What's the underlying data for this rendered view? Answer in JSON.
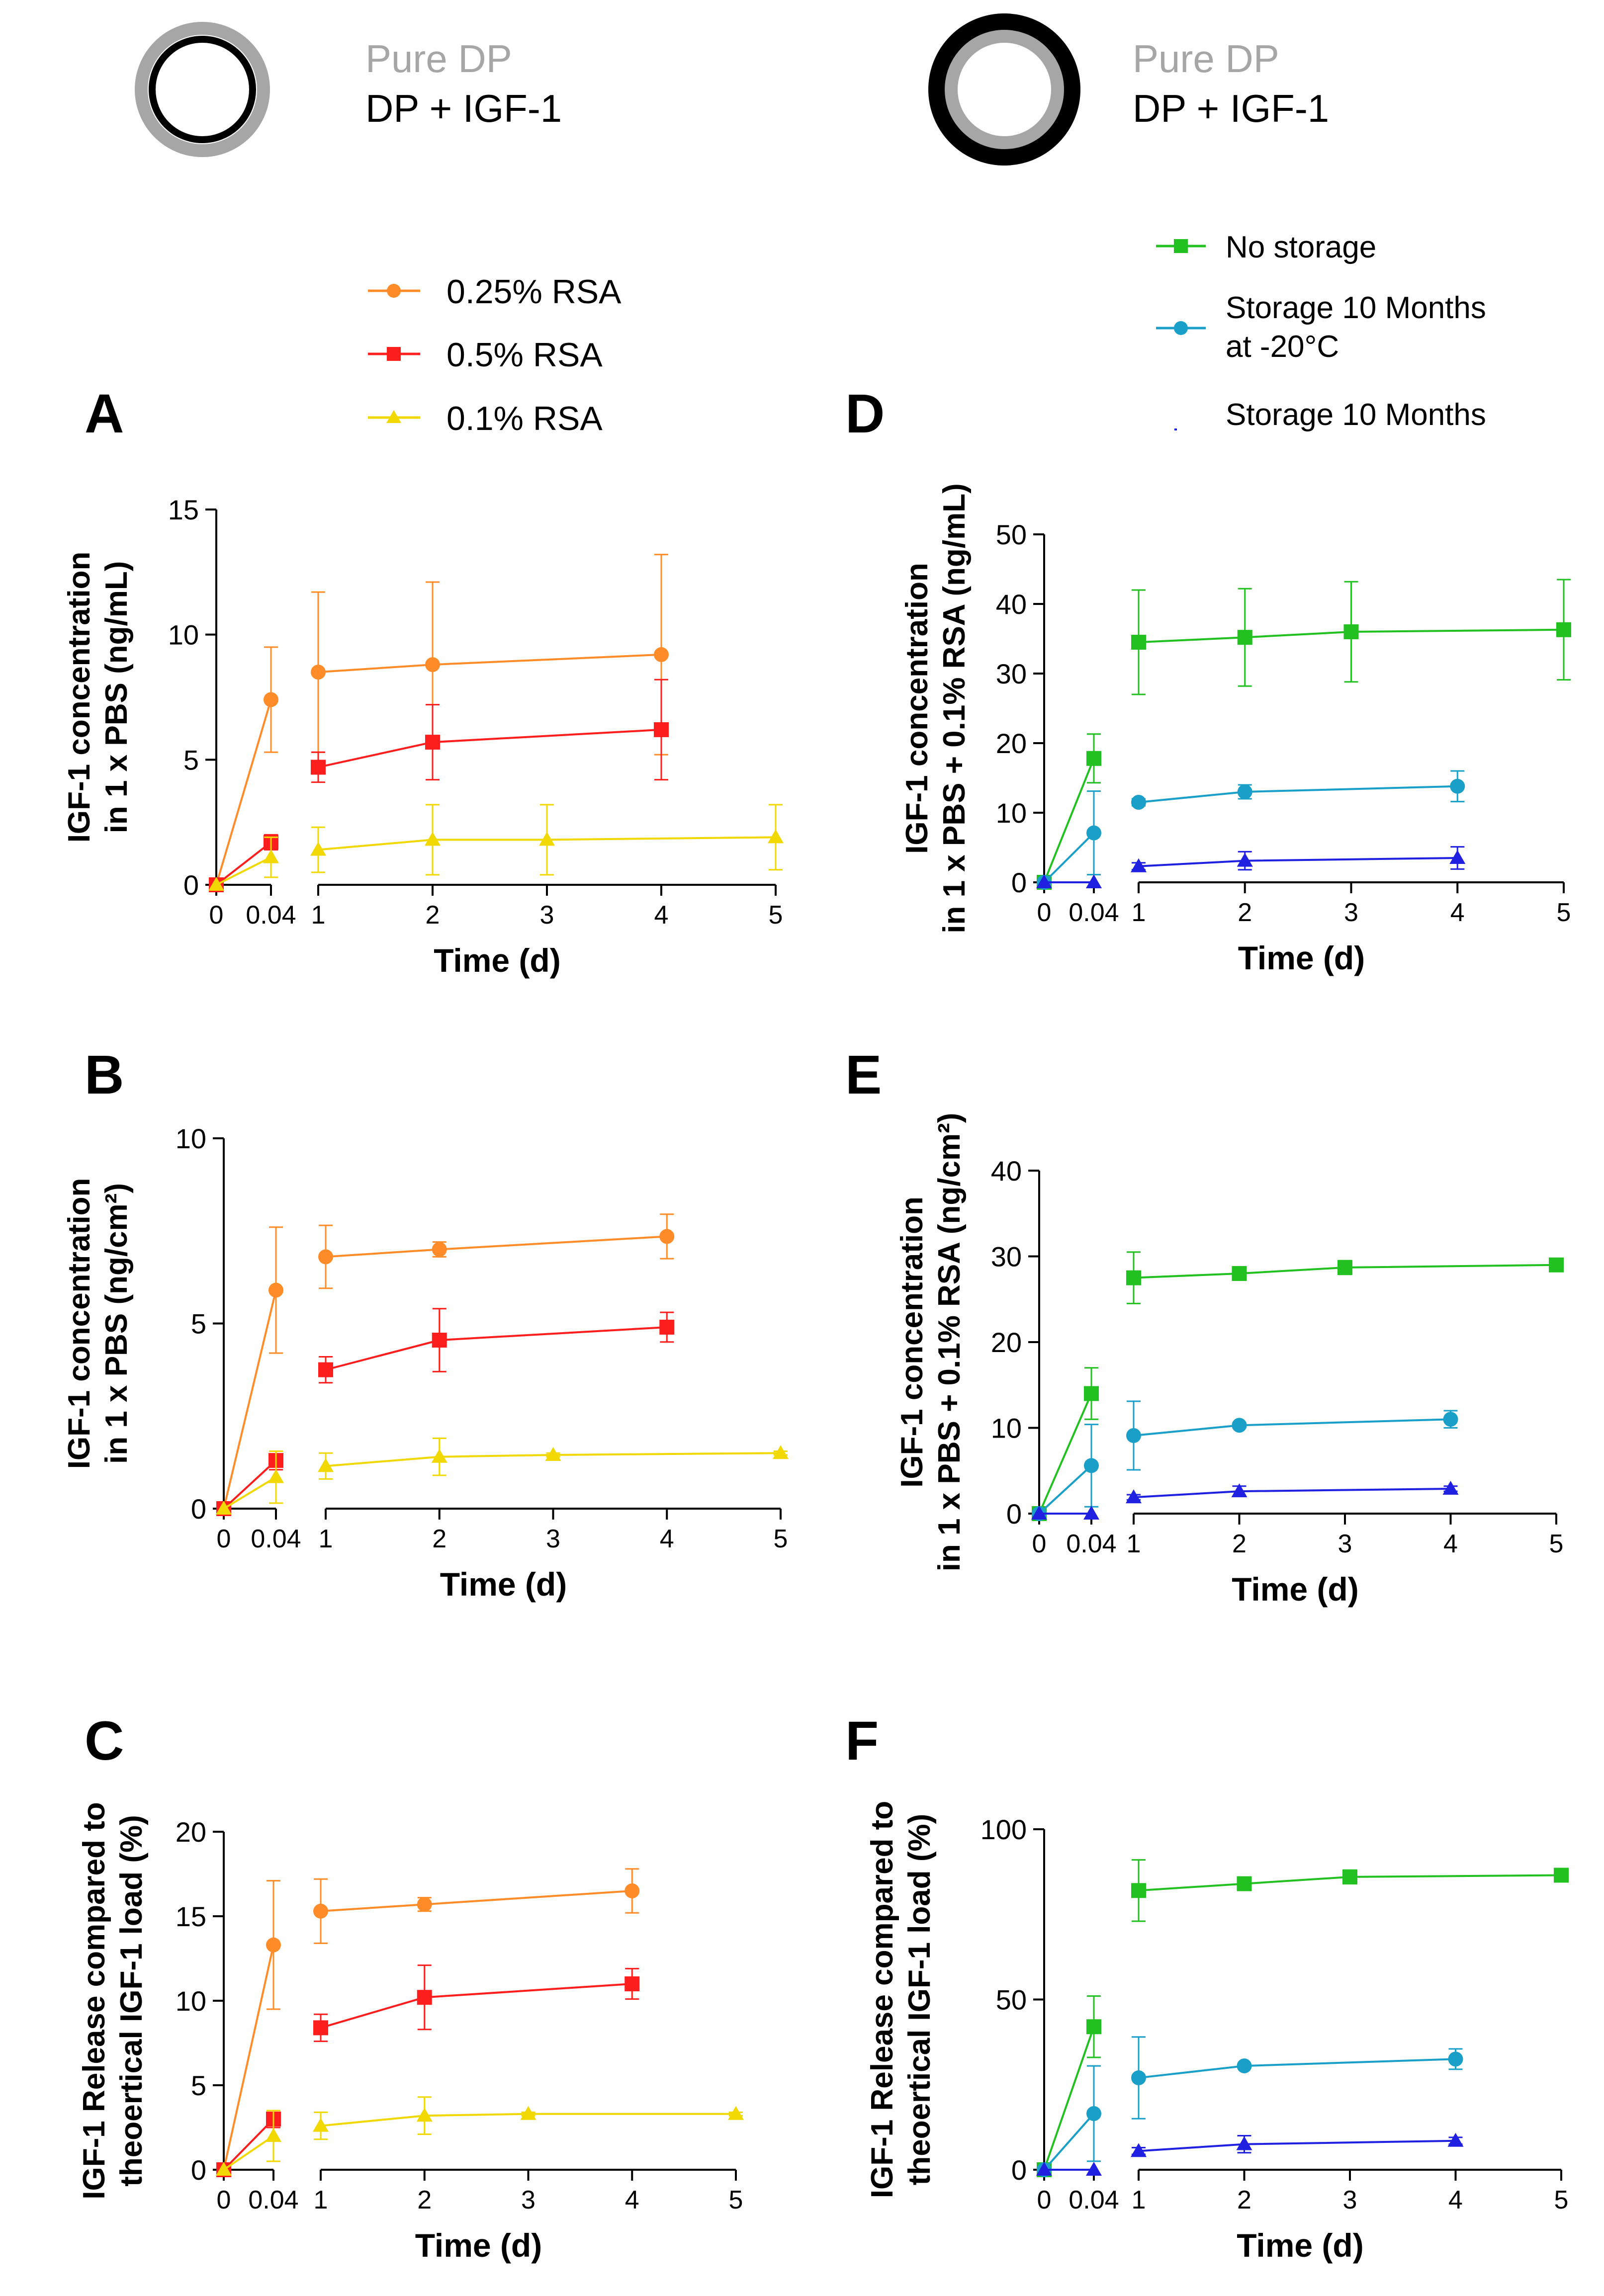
{
  "legend_rings": [
    {
      "pure_label": "Pure DP",
      "igf_label": "DP + IGF-1",
      "ring_style": "thin-black-inner"
    },
    {
      "pure_label": "Pure DP",
      "igf_label": "DP + IGF-1",
      "ring_style": "thick-black-outer"
    }
  ],
  "legend_left": [
    {
      "name": "0.25% RSA",
      "color": "#ff8c28",
      "marker": "circle"
    },
    {
      "name": "0.5% RSA",
      "color": "#ff1e1e",
      "marker": "square"
    },
    {
      "name": "0.1% RSA",
      "color": "#f0d800",
      "marker": "triangle"
    }
  ],
  "legend_right": [
    {
      "name": "No storage",
      "color": "#22c020",
      "marker": "square"
    },
    {
      "name": "Storage 10 Months",
      "name2": "at -20°C",
      "color": "#1aa0c8",
      "marker": "circle"
    },
    {
      "name": "Storage 10 Months",
      "color": "#2020e0",
      "marker": "triangle"
    }
  ],
  "colors": {
    "s025": "#ff8c28",
    "s05": "#ff1e1e",
    "s01": "#f0d800",
    "none": "#22c020",
    "m20": "#1aa0c8",
    "stor": "#2020e0",
    "ring_gray": "#a6a6a6",
    "pure_text": "#a6a6a6"
  },
  "chart_data": [
    {
      "panel": "A",
      "type": "line",
      "xlabel": "Time (d)",
      "ylabel": "IGF-1 concentration",
      "ylabel2": "in 1 x PBS (ng/mL)",
      "ylim": [
        0,
        15
      ],
      "yticks": [
        0,
        5,
        10,
        15
      ],
      "x_ticks_left": [
        "0",
        "0.04"
      ],
      "x_ticks_right": [
        "1",
        "2",
        "3",
        "4",
        "5"
      ],
      "series": [
        {
          "name": "0.25% RSA",
          "key": "s025",
          "marker": "circle",
          "x": [
            0,
            0.04,
            1,
            2,
            4
          ],
          "y": [
            0,
            7.4,
            8.5,
            8.8,
            9.2
          ],
          "err": [
            0,
            2.1,
            3.2,
            3.3,
            4.0
          ]
        },
        {
          "name": "0.5% RSA",
          "key": "s05",
          "marker": "square",
          "x": [
            0,
            0.04,
            1,
            2,
            4
          ],
          "y": [
            0,
            1.7,
            4.7,
            5.7,
            6.2
          ],
          "err": [
            0,
            0.3,
            0.6,
            1.5,
            2.0
          ]
        },
        {
          "name": "0.1% RSA",
          "key": "s01",
          "marker": "triangle",
          "x": [
            0,
            0.04,
            1,
            2,
            3,
            5
          ],
          "y": [
            0,
            1.1,
            1.4,
            1.8,
            1.8,
            1.9
          ],
          "err": [
            0,
            0.8,
            0.9,
            1.4,
            1.4,
            1.3
          ]
        }
      ]
    },
    {
      "panel": "B",
      "type": "line",
      "xlabel": "Time (d)",
      "ylabel": "IGF-1 concentration",
      "ylabel2": "in 1 x PBS (ng/cm²)",
      "ylim": [
        0,
        10
      ],
      "yticks": [
        0,
        5,
        10
      ],
      "x_ticks_left": [
        "0",
        "0.04"
      ],
      "x_ticks_right": [
        "1",
        "2",
        "3",
        "4",
        "5"
      ],
      "series": [
        {
          "name": "0.25% RSA",
          "key": "s025",
          "marker": "circle",
          "x": [
            0,
            0.04,
            1,
            2,
            4
          ],
          "y": [
            0,
            5.9,
            6.8,
            7.0,
            7.35
          ],
          "err": [
            0,
            1.7,
            0.85,
            0.2,
            0.6
          ]
        },
        {
          "name": "0.5% RSA",
          "key": "s05",
          "marker": "square",
          "x": [
            0,
            0.04,
            1,
            2,
            4
          ],
          "y": [
            0,
            1.3,
            3.75,
            4.55,
            4.9
          ],
          "err": [
            0,
            0.25,
            0.35,
            0.85,
            0.4
          ]
        },
        {
          "name": "0.1% RSA",
          "key": "s01",
          "marker": "triangle",
          "x": [
            0,
            0.04,
            1,
            2,
            3,
            5
          ],
          "y": [
            0,
            0.85,
            1.15,
            1.4,
            1.45,
            1.5
          ],
          "err": [
            0,
            0.7,
            0.35,
            0.5,
            0.05,
            0.05
          ]
        }
      ]
    },
    {
      "panel": "C",
      "type": "line",
      "xlabel": "Time (d)",
      "ylabel": "IGF-1 Release compared to",
      "ylabel2": "theoertical IGF-1 load (%)",
      "ylim": [
        0,
        20
      ],
      "yticks": [
        0,
        5,
        10,
        15,
        20
      ],
      "x_ticks_left": [
        "0",
        "0.04"
      ],
      "x_ticks_right": [
        "1",
        "2",
        "3",
        "4",
        "5"
      ],
      "series": [
        {
          "name": "0.25% RSA",
          "key": "s025",
          "marker": "circle",
          "x": [
            0,
            0.04,
            1,
            2,
            4
          ],
          "y": [
            0,
            13.3,
            15.3,
            15.7,
            16.5
          ],
          "err": [
            0,
            3.8,
            1.9,
            0.4,
            1.3
          ]
        },
        {
          "name": "0.5% RSA",
          "key": "s05",
          "marker": "square",
          "x": [
            0,
            0.04,
            1,
            2,
            4
          ],
          "y": [
            0,
            3.0,
            8.4,
            10.2,
            11.0
          ],
          "err": [
            0,
            0.5,
            0.8,
            1.9,
            0.9
          ]
        },
        {
          "name": "0.1% RSA",
          "key": "s01",
          "marker": "triangle",
          "x": [
            0,
            0.04,
            1,
            2,
            3,
            5
          ],
          "y": [
            0,
            2.0,
            2.6,
            3.2,
            3.3,
            3.3
          ],
          "err": [
            0,
            1.5,
            0.8,
            1.1,
            0.1,
            0.1
          ]
        }
      ]
    },
    {
      "panel": "D",
      "type": "line",
      "xlabel": "Time (d)",
      "ylabel": "IGF-1 concentration",
      "ylabel2": "in 1 x PBS + 0.1% RSA (ng/mL)",
      "ylim": [
        0,
        50
      ],
      "yticks": [
        0,
        10,
        20,
        30,
        40,
        50
      ],
      "x_ticks_left": [
        "0",
        "0.04"
      ],
      "x_ticks_right": [
        "1",
        "2",
        "3",
        "4",
        "5"
      ],
      "series": [
        {
          "name": "No storage",
          "key": "none",
          "marker": "square",
          "x": [
            0,
            0.04,
            1,
            2,
            3,
            5
          ],
          "y": [
            0,
            17.8,
            34.5,
            35.2,
            36.0,
            36.3
          ],
          "err": [
            0,
            3.5,
            7.5,
            7.0,
            7.2,
            7.2
          ]
        },
        {
          "name": "Storage 10 Months at -20°C",
          "key": "m20",
          "marker": "circle",
          "x": [
            0,
            0.04,
            1,
            2,
            4
          ],
          "y": [
            0,
            7.1,
            11.5,
            13.0,
            13.8
          ],
          "err": [
            0,
            6.0,
            0.5,
            1.0,
            2.2
          ]
        },
        {
          "name": "Storage 10 Months",
          "key": "stor",
          "marker": "triangle",
          "x": [
            0,
            0.04,
            1,
            2,
            4
          ],
          "y": [
            0,
            0,
            2.3,
            3.1,
            3.5
          ],
          "err": [
            0,
            0,
            0.5,
            1.3,
            1.6
          ]
        }
      ]
    },
    {
      "panel": "E",
      "type": "line",
      "xlabel": "Time (d)",
      "ylabel": "IGF-1 concentration",
      "ylabel2": "in 1 x PBS + 0.1% RSA (ng/cm²)",
      "ylim": [
        0,
        40
      ],
      "yticks": [
        0,
        10,
        20,
        30,
        40
      ],
      "x_ticks_left": [
        "0",
        "0.04"
      ],
      "x_ticks_right": [
        "1",
        "2",
        "3",
        "4",
        "5"
      ],
      "series": [
        {
          "name": "No storage",
          "key": "none",
          "marker": "square",
          "x": [
            0,
            0.04,
            1,
            2,
            3,
            5
          ],
          "y": [
            0,
            14.0,
            27.5,
            28.0,
            28.7,
            29.0
          ],
          "err": [
            0,
            3.0,
            3.0,
            0.4,
            0.8,
            0.3
          ]
        },
        {
          "name": "Storage 10 Months at -20°C",
          "key": "m20",
          "marker": "circle",
          "x": [
            0,
            0.04,
            1,
            2,
            4
          ],
          "y": [
            0,
            5.6,
            9.1,
            10.3,
            11.0
          ],
          "err": [
            0,
            4.8,
            4.0,
            0.3,
            1.0
          ]
        },
        {
          "name": "Storage 10 Months",
          "key": "stor",
          "marker": "triangle",
          "x": [
            0,
            0.04,
            1,
            2,
            4
          ],
          "y": [
            0,
            0,
            1.9,
            2.6,
            2.9
          ],
          "err": [
            0,
            0,
            0.3,
            0.6,
            0.3
          ]
        }
      ]
    },
    {
      "panel": "F",
      "type": "line",
      "xlabel": "Time (d)",
      "ylabel": "IGF-1 Release compared to",
      "ylabel2": "theoertical IGF-1 load (%)",
      "ylim": [
        0,
        100
      ],
      "yticks": [
        0,
        50,
        100
      ],
      "x_ticks_left": [
        "0",
        "0.04"
      ],
      "x_ticks_right": [
        "1",
        "2",
        "3",
        "4",
        "5"
      ],
      "series": [
        {
          "name": "No storage",
          "key": "none",
          "marker": "square",
          "x": [
            0,
            0.04,
            1,
            2,
            3,
            5
          ],
          "y": [
            0,
            42.0,
            82.0,
            84.0,
            86.0,
            86.5
          ],
          "err": [
            0,
            9.0,
            9.0,
            1.0,
            2.0,
            0.5
          ]
        },
        {
          "name": "Storage 10 Months at -20°C",
          "key": "m20",
          "marker": "circle",
          "x": [
            0,
            0.04,
            1,
            2,
            4
          ],
          "y": [
            0,
            16.5,
            27.0,
            30.5,
            32.5
          ],
          "err": [
            0,
            14.0,
            12.0,
            0.5,
            3.0
          ]
        },
        {
          "name": "Storage 10 Months",
          "key": "stor",
          "marker": "triangle",
          "x": [
            0,
            0.04,
            1,
            2,
            4
          ],
          "y": [
            0,
            0,
            5.5,
            7.5,
            8.5
          ],
          "err": [
            0,
            0,
            1.0,
            2.5,
            1.0
          ]
        }
      ]
    }
  ]
}
